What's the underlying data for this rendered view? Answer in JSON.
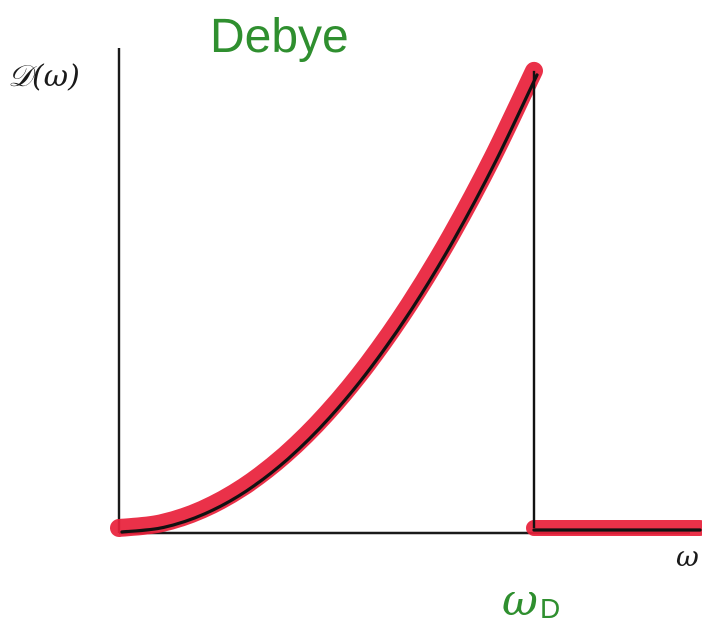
{
  "chart_data": {
    "type": "line",
    "title": "Debye",
    "ylabel": "𝒟(ω)",
    "xlabel": "ω",
    "cutoff_label": {
      "symbol": "ω",
      "subscript": "D"
    },
    "xlim": [
      0,
      1.4
    ],
    "ylim": [
      0,
      1.05
    ],
    "cutoff_x": 1.0,
    "grid": false,
    "legend": "none",
    "series": [
      {
        "x": [
          0.0,
          0.1,
          0.2,
          0.3,
          0.4,
          0.5,
          0.6,
          0.7,
          0.8,
          0.9,
          1.0,
          1.0,
          1.4
        ],
        "values": [
          0.0,
          0.01,
          0.04,
          0.09,
          0.16,
          0.25,
          0.36,
          0.49,
          0.64,
          0.81,
          1.0,
          0.0,
          0.0
        ]
      }
    ],
    "colors": {
      "series_highlight": "#e8203a",
      "series_line": "#111111",
      "axes": "#1a1a1a",
      "title": "#2f8f2f",
      "cutoff_label": "#2f8f2f"
    }
  }
}
